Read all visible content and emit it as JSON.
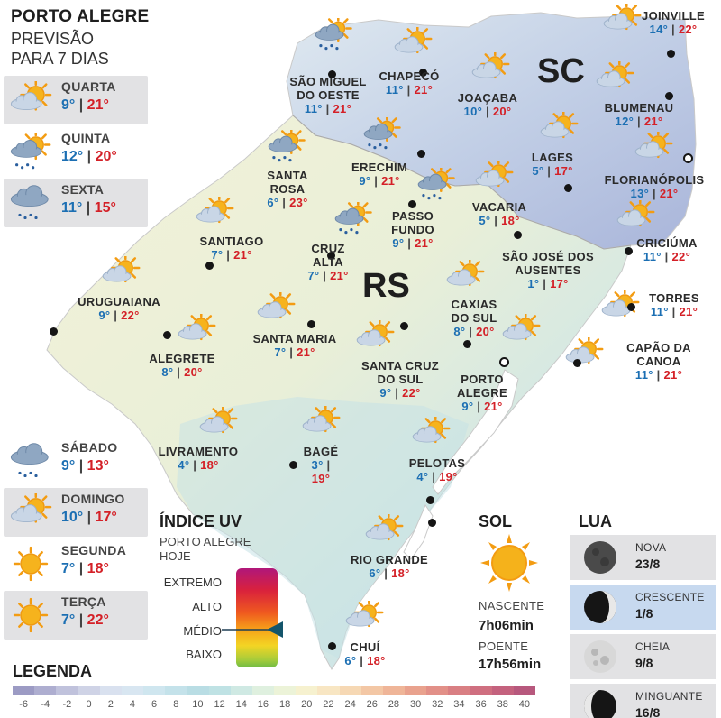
{
  "header": {
    "city": "PORTO ALEGRE",
    "subtitle": "PREVISÃO PARA 7 DIAS"
  },
  "week_top": [
    {
      "day": "QUARTA",
      "min": "9°",
      "max": "21°",
      "icon": "sun-cloud-icon",
      "shade": true
    },
    {
      "day": "QUINTA",
      "min": "12°",
      "max": "20°",
      "icon": "sun-cloud-rain-icon",
      "shade": false
    },
    {
      "day": "SEXTA",
      "min": "11°",
      "max": "15°",
      "icon": "rain-cloud-icon",
      "shade": true
    }
  ],
  "week_bottom": [
    {
      "day": "SÁBADO",
      "min": "9°",
      "max": "13°",
      "icon": "rain-cloud-icon",
      "shade": false
    },
    {
      "day": "DOMINGO",
      "min": "10°",
      "max": "17°",
      "icon": "sun-cloud-icon",
      "shade": true
    },
    {
      "day": "SEGUNDA",
      "min": "7°",
      "max": "18°",
      "icon": "sun-icon",
      "shade": false
    },
    {
      "day": "TERÇA",
      "min": "7°",
      "max": "22°",
      "icon": "sun-icon",
      "shade": true
    }
  ],
  "states": {
    "rs": "RS",
    "sc": "SC"
  },
  "cities": [
    {
      "name": "JOINVILLE",
      "min": "14°",
      "max": "22°"
    },
    {
      "name": "SÃO MIGUEL DO OESTE",
      "min": "11°",
      "max": "21°"
    },
    {
      "name": "CHAPECÓ",
      "min": "11°",
      "max": "21°"
    },
    {
      "name": "JOAÇABA",
      "min": "10°",
      "max": "20°"
    },
    {
      "name": "BLUMENAU",
      "min": "12°",
      "max": "21°"
    },
    {
      "name": "LAGES",
      "min": "5°",
      "max": "17°"
    },
    {
      "name": "FLORIANÓPOLIS",
      "min": "13°",
      "max": "21°"
    },
    {
      "name": "SANTA ROSA",
      "min": "6°",
      "max": "23°"
    },
    {
      "name": "ERECHIM",
      "min": "9°",
      "max": "21°"
    },
    {
      "name": "VACARIA",
      "min": "5°",
      "max": "18°"
    },
    {
      "name": "SANTIAGO",
      "min": "7°",
      "max": "21°"
    },
    {
      "name": "PASSO FUNDO",
      "min": "9°",
      "max": "21°"
    },
    {
      "name": "CRUZ ALTA",
      "min": "7°",
      "max": "21°"
    },
    {
      "name": "SÃO JOSÉ DOS AUSENTES",
      "min": "1°",
      "max": "17°"
    },
    {
      "name": "CRICIÚMA",
      "min": "11°",
      "max": "22°"
    },
    {
      "name": "URUGUAIANA",
      "min": "9°",
      "max": "22°"
    },
    {
      "name": "CAXIAS DO SUL",
      "min": "8°",
      "max": "20°"
    },
    {
      "name": "TORRES",
      "min": "11°",
      "max": "21°"
    },
    {
      "name": "SANTA MARIA",
      "min": "7°",
      "max": "21°"
    },
    {
      "name": "ALEGRETE",
      "min": "8°",
      "max": "20°"
    },
    {
      "name": "CAPÃO DA CANOA",
      "min": "11°",
      "max": "21°"
    },
    {
      "name": "SANTA CRUZ DO SUL",
      "min": "9°",
      "max": "22°"
    },
    {
      "name": "PORTO ALEGRE",
      "min": "9°",
      "max": "21°"
    },
    {
      "name": "LIVRAMENTO",
      "min": "4°",
      "max": "18°"
    },
    {
      "name": "BAGÉ",
      "min": "3°",
      "max": "19°"
    },
    {
      "name": "PELOTAS",
      "min": "4°",
      "max": "19°"
    },
    {
      "name": "RIO GRANDE",
      "min": "6°",
      "max": "18°"
    },
    {
      "name": "CHUÍ",
      "min": "6°",
      "max": "18°"
    }
  ],
  "uv": {
    "title": "ÍNDICE UV",
    "subtitle": "PORTO ALEGRE HOJE",
    "levels": [
      "EXTREMO",
      "ALTO",
      "MÉDIO",
      "BAIXO"
    ],
    "current": "MÉDIO"
  },
  "sun": {
    "title": "SOL",
    "rise_label": "NASCENTE",
    "rise": "7h06min",
    "set_label": "POENTE",
    "set": "17h56min"
  },
  "moon": {
    "title": "LUA",
    "phases": [
      {
        "name": "NOVA",
        "date": "23/8",
        "highlight": false
      },
      {
        "name": "CRESCENTE",
        "date": "1/8",
        "highlight": true
      },
      {
        "name": "CHEIA",
        "date": "9/8",
        "highlight": false
      },
      {
        "name": "MINGUANTE",
        "date": "16/8",
        "highlight": false
      }
    ]
  },
  "legend": {
    "title": "LEGENDA",
    "ticks": [
      "-6",
      "-4",
      "-2",
      "0",
      "2",
      "4",
      "6",
      "8",
      "10",
      "12",
      "14",
      "16",
      "18",
      "20",
      "22",
      "24",
      "26",
      "28",
      "30",
      "32",
      "34",
      "36",
      "38",
      "40"
    ],
    "colors": [
      "#9c9bc4",
      "#aeaed0",
      "#c0c2dc",
      "#cfd3e6",
      "#d9e1ef",
      "#d8e6f1",
      "#cfe6ef",
      "#c4e2ea",
      "#b9dde4",
      "#bfe2e4",
      "#cfe9e3",
      "#dff0df",
      "#ecf3d8",
      "#f6f1cf",
      "#f8e6c3",
      "#f6d8b4",
      "#f3c7a5",
      "#efb598",
      "#e9a28e",
      "#e29088",
      "#d97f83",
      "#cf6f80",
      "#c4627e",
      "#b7587d"
    ]
  }
}
